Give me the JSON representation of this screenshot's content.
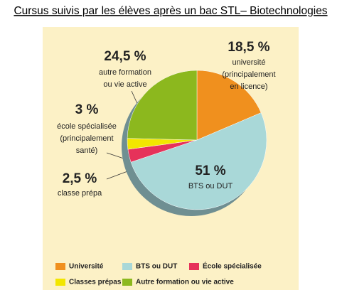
{
  "chart_data": {
    "type": "pie",
    "title": "Cursus suivis par les élèves après un bac STL– Biotechnologies",
    "categories": [
      "Université",
      "BTS ou DUT",
      "École spécialisée",
      "Classes prépas",
      "Autre formation ou vie active"
    ],
    "values": [
      18.5,
      51,
      3,
      2.5,
      24.5
    ],
    "value_labels": [
      "18,5 %",
      "51 %",
      "3 %",
      "2,5 %",
      "24,5 %"
    ],
    "slice_labels": [
      [
        "université",
        "(principalement",
        "en licence)"
      ],
      [
        "BTS ou DUT"
      ],
      [
        "école spécialisée",
        "(principalement",
        "santé)"
      ],
      [
        "classe prépa"
      ],
      [
        "autre formation",
        "ou vie active"
      ]
    ],
    "colors": [
      "#f0901e",
      "#a9d8d8",
      "#e6325a",
      "#f2e600",
      "#8cb81e"
    ]
  }
}
